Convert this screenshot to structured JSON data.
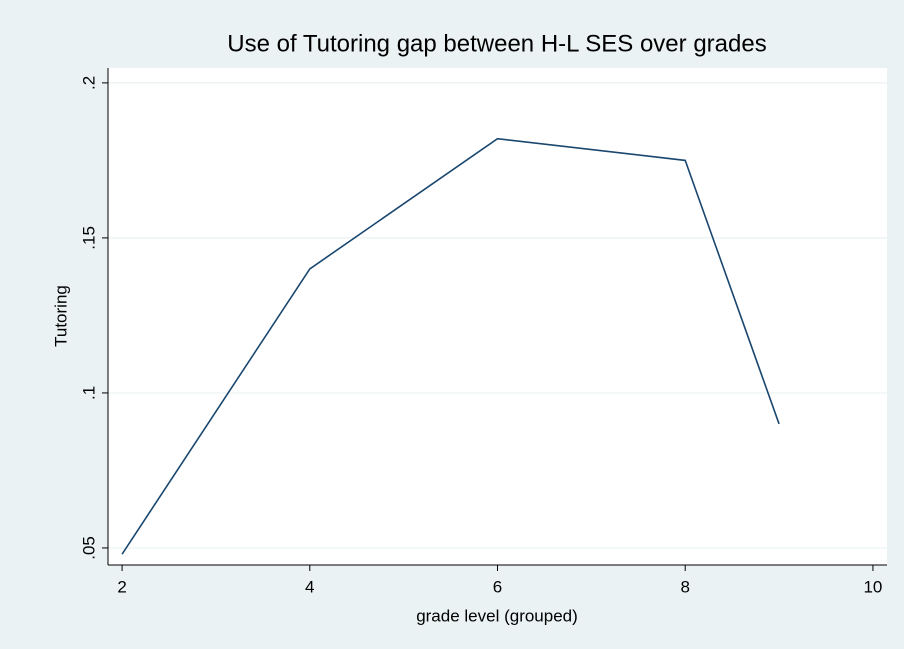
{
  "chart_data": {
    "type": "line",
    "title": "Use of Tutoring gap between H-L SES over grades",
    "x_label": "grade level (grouped)",
    "y_label": "Tutoring",
    "x": [
      2,
      4,
      6,
      8,
      9
    ],
    "series": [
      {
        "name": "Tutoring",
        "color": "#1a476f",
        "values": [
          0.048,
          0.14,
          0.182,
          0.175,
          0.09
        ]
      }
    ],
    "xlim": [
      1.85,
      10.15
    ],
    "xticks": [
      2,
      4,
      6,
      8,
      10
    ],
    "ylim": [
      0.0445,
      0.2048
    ],
    "yticks": [
      {
        "value": 0.05,
        "label": ".05"
      },
      {
        "value": 0.1,
        "label": ".1"
      },
      {
        "value": 0.15,
        "label": ".15"
      },
      {
        "value": 0.2,
        "label": ".2"
      }
    ],
    "grid": true
  }
}
